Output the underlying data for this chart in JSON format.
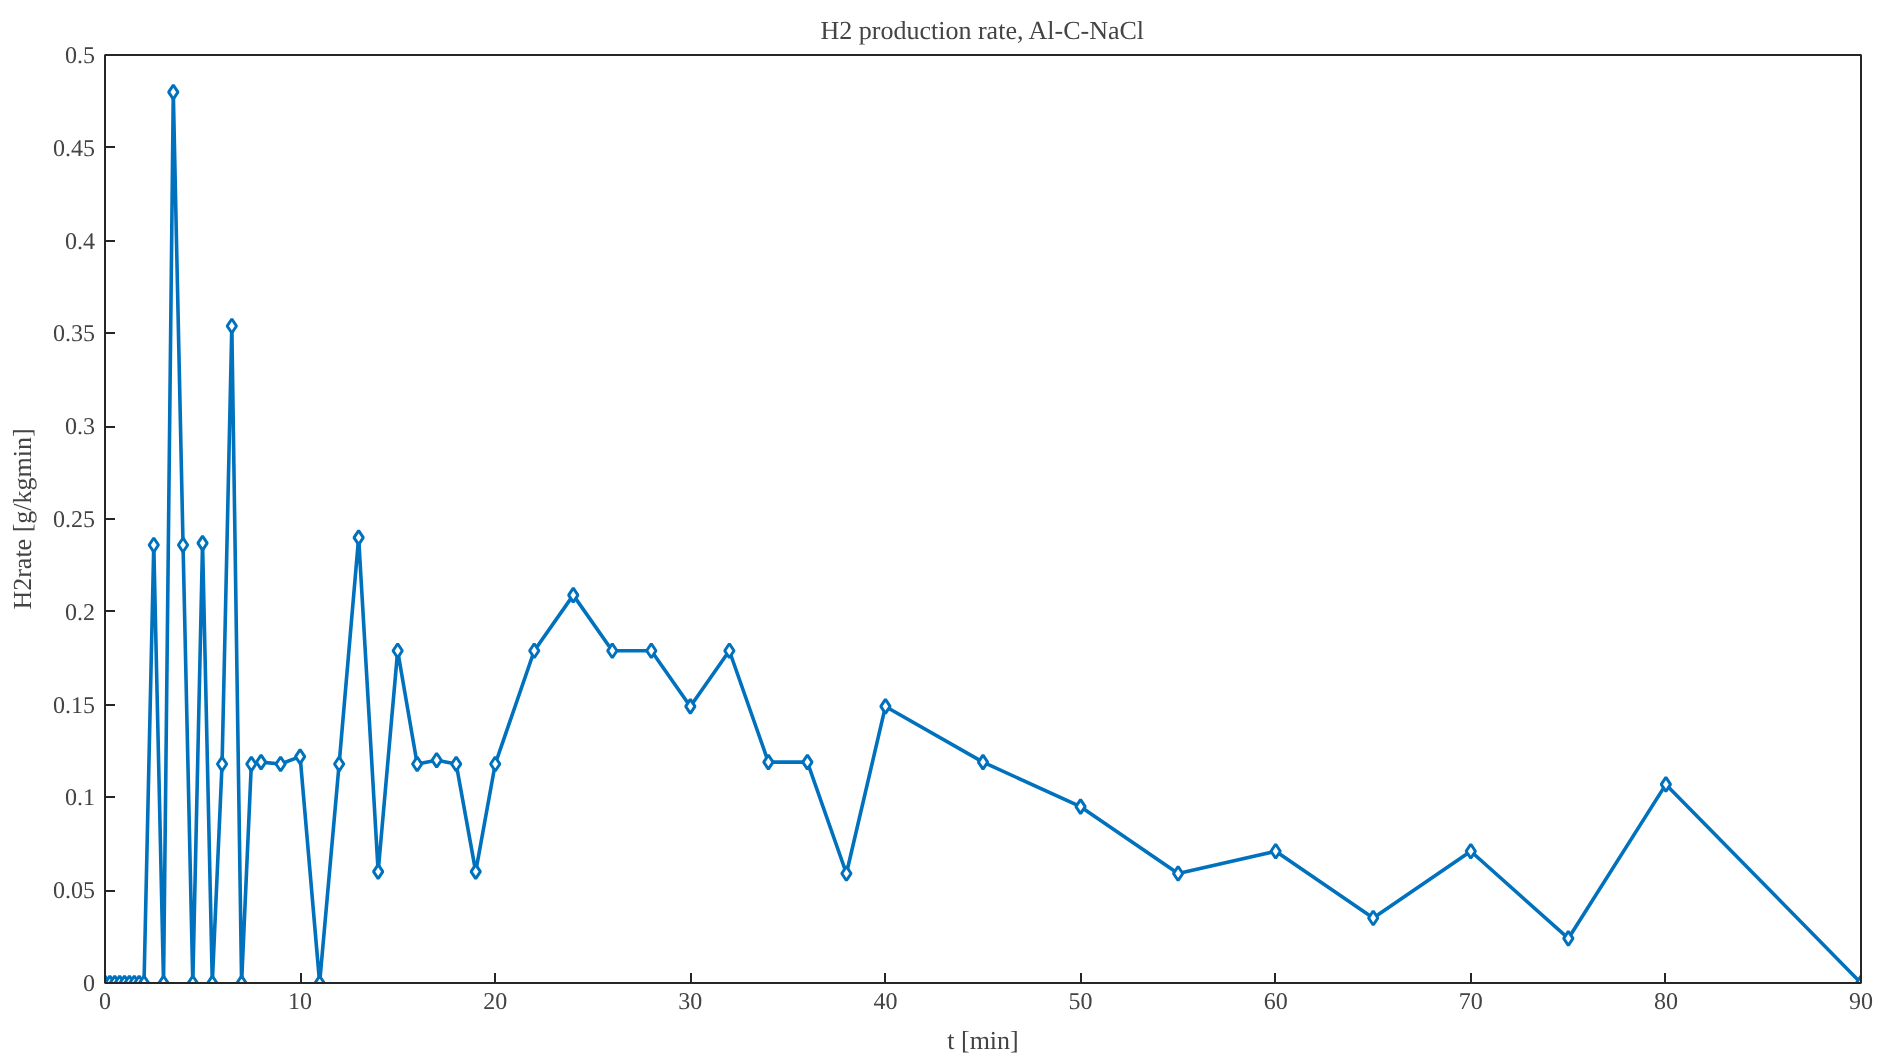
{
  "chart_data": {
    "type": "line",
    "title": "H2 production rate, Al-C-NaCl",
    "xlabel": "t [min]",
    "ylabel": "H2rate [g/kgmin]",
    "x": [
      0,
      0.25,
      0.5,
      0.75,
      1,
      1.25,
      1.5,
      1.75,
      2,
      2.5,
      3,
      3.5,
      4,
      4.5,
      5,
      5.5,
      6,
      6.5,
      7,
      7.5,
      8,
      9,
      10,
      11,
      12,
      13,
      14,
      15,
      16,
      17,
      18,
      19,
      20,
      22,
      24,
      26,
      28,
      30,
      32,
      34,
      36,
      38,
      40,
      45,
      50,
      55,
      60,
      65,
      70,
      75,
      80,
      90
    ],
    "series": [
      {
        "color": "#0072bd",
        "values": [
          0,
          0,
          0,
          0,
          0,
          0,
          0,
          0,
          0,
          0.236,
          0,
          0.48,
          0.236,
          0,
          0.237,
          0,
          0.118,
          0.354,
          0,
          0.118,
          0.119,
          0.118,
          0.122,
          0,
          0.118,
          0.24,
          0.06,
          0.179,
          0.118,
          0.12,
          0.118,
          0.06,
          0.118,
          0.179,
          0.209,
          0.179,
          0.179,
          0.149,
          0.179,
          0.119,
          0.119,
          0.059,
          0.149,
          0.119,
          0.095,
          0.059,
          0.071,
          0.035,
          0.071,
          0.024,
          0.107,
          0
        ]
      }
    ],
    "xlim": [
      0,
      90
    ],
    "ylim": [
      0,
      0.5
    ],
    "xticks": [
      0,
      10,
      20,
      30,
      40,
      50,
      60,
      70,
      80,
      90
    ],
    "yticks": [
      0,
      0.05,
      0.1,
      0.15,
      0.2,
      0.25,
      0.3,
      0.35,
      0.4,
      0.45,
      0.5
    ],
    "marker": "diamond",
    "line_style": "solid",
    "grid": false
  }
}
